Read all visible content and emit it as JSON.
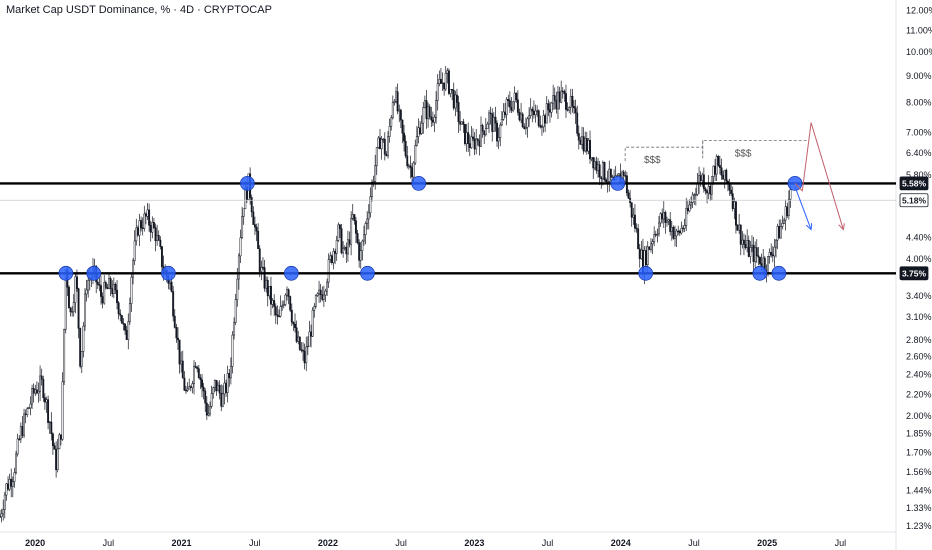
{
  "header": {
    "title": "Market Cap USDT Dominance, % · 4D · CRYPTOCAP"
  },
  "chart_data": {
    "type": "candlestick",
    "title": "Market Cap USDT Dominance, % · 4D · CRYPTOCAP",
    "xlabel": "",
    "ylabel": "",
    "y_scale": "log",
    "ylim": [
      1.2,
      12.5
    ],
    "y_ticks": [
      "12.00%",
      "11.00%",
      "10.00%",
      "9.00%",
      "8.00%",
      "7.00%",
      "6.40%",
      "5.80%",
      "4.40%",
      "4.00%",
      "3.40%",
      "3.10%",
      "2.80%",
      "2.60%",
      "2.40%",
      "2.20%",
      "2.00%",
      "1.85%",
      "1.70%",
      "1.56%",
      "1.44%",
      "1.33%",
      "1.23%"
    ],
    "y_tick_values": [
      12.0,
      11.0,
      10.0,
      9.0,
      8.0,
      7.0,
      6.4,
      5.8,
      4.4,
      4.0,
      3.4,
      3.1,
      2.8,
      2.6,
      2.4,
      2.2,
      2.0,
      1.85,
      1.7,
      1.56,
      1.44,
      1.33,
      1.23
    ],
    "x_ticks": [
      {
        "label": "2020",
        "t": 2020.0
      },
      {
        "label": "Jul",
        "t": 2020.5
      },
      {
        "label": "2021",
        "t": 2021.0
      },
      {
        "label": "Jul",
        "t": 2021.5
      },
      {
        "label": "2022",
        "t": 2022.0
      },
      {
        "label": "Jul",
        "t": 2022.5
      },
      {
        "label": "2023",
        "t": 2023.0
      },
      {
        "label": "Jul",
        "t": 2023.5
      },
      {
        "label": "2024",
        "t": 2024.0
      },
      {
        "label": "Jul",
        "t": 2024.5
      },
      {
        "label": "2025",
        "t": 2025.0
      },
      {
        "label": "Jul",
        "t": 2025.5
      }
    ],
    "xlim": [
      2019.76,
      2025.88
    ],
    "price_badges": [
      {
        "label": "5.58%",
        "value": 5.58,
        "style": "dark"
      },
      {
        "label": "5.18%",
        "value": 5.18,
        "style": "light"
      },
      {
        "label": "3.75%",
        "value": 3.75,
        "style": "dark"
      }
    ],
    "horizontal_levels": [
      {
        "value": 5.58,
        "style": "thick"
      },
      {
        "value": 3.75,
        "style": "thick"
      },
      {
        "value": 5.18,
        "style": "thin"
      }
    ],
    "series_path": [
      [
        2019.76,
        1.28
      ],
      [
        2019.8,
        1.45
      ],
      [
        2019.85,
        1.55
      ],
      [
        2019.9,
        1.85
      ],
      [
        2019.95,
        2.05
      ],
      [
        2020.0,
        2.25
      ],
      [
        2020.05,
        2.3
      ],
      [
        2020.1,
        1.95
      ],
      [
        2020.14,
        1.6
      ],
      [
        2020.18,
        1.9
      ],
      [
        2020.21,
        3.9
      ],
      [
        2020.24,
        3.1
      ],
      [
        2020.28,
        3.7
      ],
      [
        2020.31,
        2.5
      ],
      [
        2020.35,
        3.6
      ],
      [
        2020.4,
        3.75
      ],
      [
        2020.45,
        3.4
      ],
      [
        2020.52,
        3.55
      ],
      [
        2020.58,
        3.2
      ],
      [
        2020.62,
        2.75
      ],
      [
        2020.66,
        3.8
      ],
      [
        2020.7,
        4.6
      ],
      [
        2020.76,
        4.8
      ],
      [
        2020.82,
        4.5
      ],
      [
        2020.88,
        3.8
      ],
      [
        2020.92,
        3.6
      ],
      [
        2020.96,
        3.0
      ],
      [
        2021.0,
        2.4
      ],
      [
        2021.04,
        2.15
      ],
      [
        2021.1,
        2.6
      ],
      [
        2021.15,
        2.2
      ],
      [
        2021.18,
        2.0
      ],
      [
        2021.23,
        2.3
      ],
      [
        2021.28,
        2.15
      ],
      [
        2021.33,
        2.4
      ],
      [
        2021.38,
        3.8
      ],
      [
        2021.42,
        5.1
      ],
      [
        2021.46,
        5.6
      ],
      [
        2021.5,
        4.6
      ],
      [
        2021.54,
        3.8
      ],
      [
        2021.6,
        3.4
      ],
      [
        2021.66,
        3.0
      ],
      [
        2021.72,
        3.6
      ],
      [
        2021.78,
        2.8
      ],
      [
        2021.84,
        2.55
      ],
      [
        2021.88,
        2.9
      ],
      [
        2021.92,
        3.3
      ],
      [
        2021.97,
        3.5
      ],
      [
        2022.02,
        4.0
      ],
      [
        2022.07,
        4.5
      ],
      [
        2022.12,
        4.0
      ],
      [
        2022.17,
        4.8
      ],
      [
        2022.22,
        4.0
      ],
      [
        2022.27,
        4.9
      ],
      [
        2022.32,
        6.0
      ],
      [
        2022.36,
        6.9
      ],
      [
        2022.4,
        6.3
      ],
      [
        2022.45,
        8.5
      ],
      [
        2022.49,
        7.3
      ],
      [
        2022.53,
        6.4
      ],
      [
        2022.57,
        5.9
      ],
      [
        2022.62,
        7.1
      ],
      [
        2022.66,
        7.8
      ],
      [
        2022.71,
        7.4
      ],
      [
        2022.76,
        8.6
      ],
      [
        2022.81,
        8.9
      ],
      [
        2022.86,
        8.1
      ],
      [
        2022.92,
        7.0
      ],
      [
        2022.98,
        6.6
      ],
      [
        2023.04,
        6.9
      ],
      [
        2023.1,
        7.5
      ],
      [
        2023.16,
        6.9
      ],
      [
        2023.22,
        7.8
      ],
      [
        2023.28,
        8.1
      ],
      [
        2023.34,
        7.3
      ],
      [
        2023.4,
        7.6
      ],
      [
        2023.47,
        7.4
      ],
      [
        2023.53,
        8.0
      ],
      [
        2023.59,
        8.2
      ],
      [
        2023.65,
        8.0
      ],
      [
        2023.72,
        6.9
      ],
      [
        2023.78,
        6.5
      ],
      [
        2023.84,
        6.0
      ],
      [
        2023.9,
        5.8
      ],
      [
        2023.96,
        5.5
      ],
      [
        2024.02,
        5.9
      ],
      [
        2024.06,
        5.1
      ],
      [
        2024.1,
        4.6
      ],
      [
        2024.15,
        3.9
      ],
      [
        2024.19,
        4.2
      ],
      [
        2024.23,
        4.5
      ],
      [
        2024.28,
        4.8
      ],
      [
        2024.33,
        4.7
      ],
      [
        2024.38,
        4.4
      ],
      [
        2024.44,
        4.7
      ],
      [
        2024.5,
        5.4
      ],
      [
        2024.55,
        5.8
      ],
      [
        2024.6,
        5.4
      ],
      [
        2024.65,
        6.1
      ],
      [
        2024.7,
        5.7
      ],
      [
        2024.75,
        5.5
      ],
      [
        2024.8,
        4.6
      ],
      [
        2024.85,
        4.2
      ],
      [
        2024.9,
        4.1
      ],
      [
        2024.95,
        4.0
      ],
      [
        2025.0,
        3.9
      ],
      [
        2025.04,
        4.2
      ],
      [
        2025.08,
        4.5
      ],
      [
        2025.12,
        4.8
      ],
      [
        2025.16,
        5.4
      ]
    ],
    "annotations": {
      "circles": [
        {
          "t": 2020.21,
          "v": 3.75
        },
        {
          "t": 2020.4,
          "v": 3.75
        },
        {
          "t": 2020.91,
          "v": 3.75
        },
        {
          "t": 2021.45,
          "v": 5.58
        },
        {
          "t": 2021.75,
          "v": 3.75
        },
        {
          "t": 2022.27,
          "v": 3.75
        },
        {
          "t": 2022.62,
          "v": 5.58
        },
        {
          "t": 2023.98,
          "v": 5.58
        },
        {
          "t": 2024.17,
          "v": 3.75
        },
        {
          "t": 2024.95,
          "v": 3.75
        },
        {
          "t": 2025.08,
          "v": 3.75
        },
        {
          "t": 2025.19,
          "v": 5.58
        }
      ],
      "liquidity_labels": [
        {
          "text": "$$$",
          "t_start": 2024.03,
          "t_end": 2024.56,
          "v": 6.55
        },
        {
          "text": "$$$",
          "t_start": 2024.56,
          "t_end": 2025.27,
          "v": 6.75
        }
      ],
      "projection_red": [
        [
          2025.19,
          5.58
        ],
        [
          2025.24,
          5.4
        ],
        [
          2025.3,
          7.3
        ],
        [
          2025.52,
          4.55
        ]
      ],
      "projection_blue": [
        [
          2025.19,
          5.5
        ],
        [
          2025.3,
          4.55
        ]
      ]
    }
  }
}
